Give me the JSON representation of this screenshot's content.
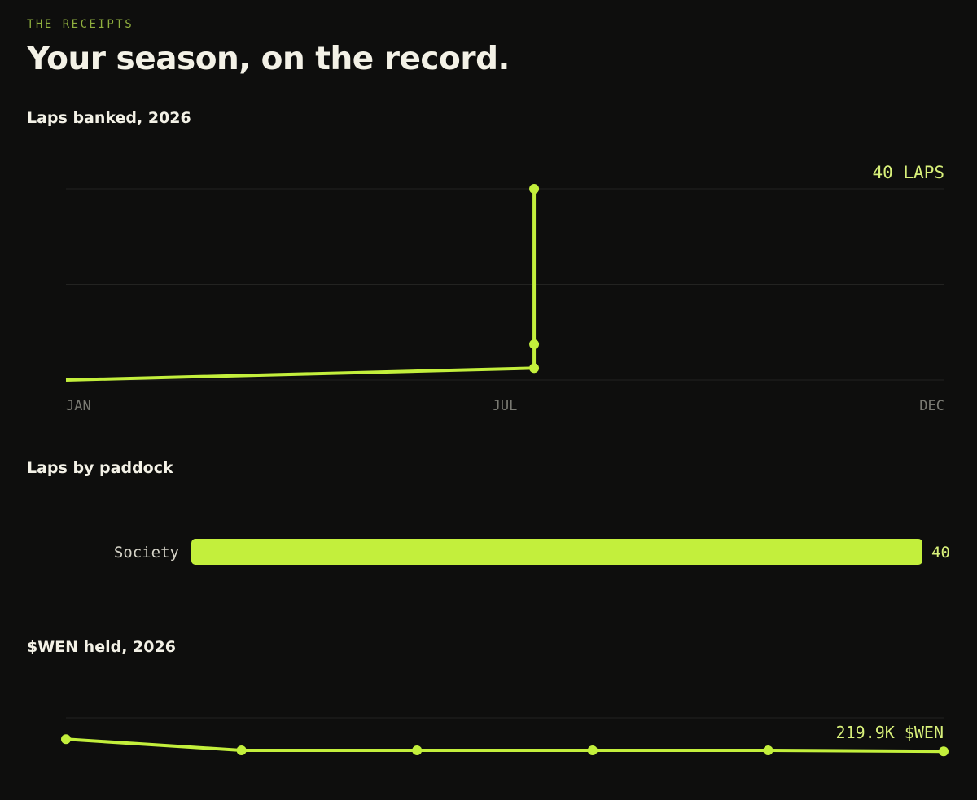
{
  "header": {
    "eyebrow": "THE RECEIPTS",
    "title": "Your season, on the record."
  },
  "colors": {
    "background": "#0e0e0d",
    "accent": "#c3ef3c",
    "grid": "#232321",
    "axis_text": "#7a7a72",
    "value_text": "#d8f07a"
  },
  "chart_data": [
    {
      "type": "line",
      "title": "Laps banked, 2026",
      "x_ticks": [
        "JAN",
        "JUL",
        "DEC"
      ],
      "end_label": "40 LAPS",
      "xlim": [
        "2026-01-01",
        "2026-12-31"
      ],
      "ylim": [
        0,
        40
      ],
      "grid": true,
      "series": [
        {
          "x": [
            "2026-01-01",
            "2026-07-14",
            "2026-07-14",
            "2026-07-14",
            "2026-07-15"
          ],
          "y": [
            0,
            2.5,
            7.5,
            40,
            40
          ],
          "markers": [
            false,
            true,
            true,
            true,
            false
          ]
        }
      ]
    },
    {
      "type": "bar",
      "title": "Laps by paddock",
      "orientation": "horizontal",
      "categories": [
        "Society"
      ],
      "values": [
        40
      ],
      "value_labels": [
        "40"
      ]
    },
    {
      "type": "line",
      "title": "$WEN held, 2026",
      "end_label": "219.9K $WEN",
      "grid": true,
      "series": [
        {
          "y": [
            221.1,
            220.0,
            220.0,
            220.0,
            220.0,
            219.9
          ]
        }
      ]
    }
  ]
}
